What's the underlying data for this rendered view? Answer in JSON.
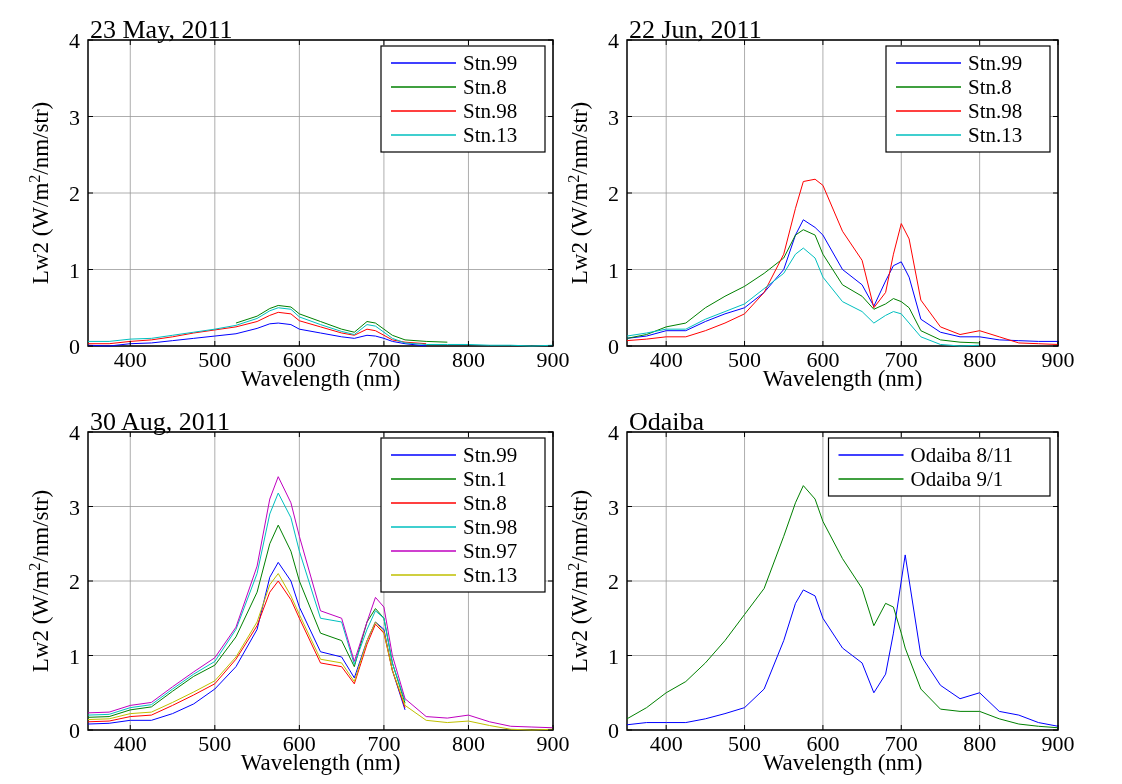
{
  "chart_data": [
    {
      "type": "line",
      "title": "23 May, 2011",
      "xlabel": "Wavelength (nm)",
      "ylabel": "Lw2 (W/m$^{2}$/nm/str)",
      "xlim": [
        350,
        900
      ],
      "xticks": [
        400,
        500,
        600,
        700,
        800,
        900
      ],
      "ylim": [
        0,
        4
      ],
      "yticks": [
        0,
        1,
        2,
        3,
        4
      ],
      "grid": true,
      "legend": "top right",
      "x": [
        350,
        375,
        400,
        425,
        450,
        475,
        500,
        525,
        550,
        565,
        575,
        590,
        600,
        625,
        650,
        665,
        680,
        690,
        700,
        710,
        725,
        750,
        775,
        800,
        825,
        850,
        875,
        900
      ],
      "series": [
        {
          "name": "Stn.99",
          "color": "#0000ff",
          "values": [
            0.01,
            0.0,
            0.03,
            0.04,
            0.07,
            0.1,
            0.13,
            0.16,
            0.23,
            0.29,
            0.3,
            0.28,
            0.22,
            0.17,
            0.12,
            0.1,
            0.14,
            0.13,
            0.1,
            0.06,
            0.03,
            0.0,
            null,
            null,
            null,
            null,
            null,
            null
          ]
        },
        {
          "name": "Stn.8",
          "color": "#008000",
          "values": [
            null,
            null,
            null,
            null,
            null,
            null,
            null,
            0.3,
            0.39,
            0.49,
            0.53,
            0.51,
            0.42,
            0.32,
            0.22,
            0.18,
            0.32,
            0.3,
            0.22,
            0.14,
            0.08,
            0.06,
            0.05,
            null,
            null,
            null,
            null,
            null
          ]
        },
        {
          "name": "Stn.98",
          "color": "#ff0000",
          "values": [
            0.03,
            0.03,
            0.06,
            0.08,
            0.12,
            0.17,
            0.21,
            0.25,
            0.32,
            0.4,
            0.44,
            0.42,
            0.33,
            0.25,
            0.17,
            0.14,
            0.22,
            0.2,
            0.14,
            0.08,
            0.05,
            0.03,
            null,
            null,
            null,
            null,
            null,
            null
          ]
        },
        {
          "name": "Stn.13",
          "color": "#00bfbf",
          "values": [
            0.06,
            0.06,
            0.09,
            0.1,
            0.14,
            0.18,
            0.22,
            0.27,
            0.36,
            0.46,
            0.5,
            0.48,
            0.38,
            0.28,
            0.19,
            0.15,
            0.28,
            0.26,
            0.18,
            0.1,
            0.04,
            0.02,
            0.02,
            0.02,
            0.01,
            0.01,
            0,
            0.01
          ]
        }
      ]
    },
    {
      "type": "line",
      "title": "22 Jun, 2011",
      "xlabel": "Wavelength (nm)",
      "ylabel": "Lw2 (W/m$^{2}$/nm/str)",
      "xlim": [
        350,
        900
      ],
      "xticks": [
        400,
        500,
        600,
        700,
        800,
        900
      ],
      "ylim": [
        0,
        4
      ],
      "yticks": [
        0,
        1,
        2,
        3,
        4
      ],
      "grid": true,
      "legend": "top right",
      "x": [
        350,
        375,
        400,
        425,
        450,
        475,
        500,
        525,
        550,
        565,
        575,
        590,
        600,
        625,
        650,
        665,
        680,
        690,
        700,
        710,
        725,
        750,
        775,
        800,
        825,
        850,
        875,
        900
      ],
      "series": [
        {
          "name": "Stn.99",
          "color": "#0000ff",
          "values": [
            0.1,
            0.13,
            0.2,
            0.2,
            0.32,
            0.42,
            0.5,
            0.7,
            1.0,
            1.45,
            1.65,
            1.55,
            1.45,
            1.0,
            0.8,
            0.52,
            0.85,
            1.05,
            1.1,
            0.9,
            0.35,
            0.18,
            0.12,
            0.12,
            0.08,
            0.07,
            0.06,
            0.06
          ]
        },
        {
          "name": "Stn.8",
          "color": "#008000",
          "values": [
            0.1,
            0.15,
            0.25,
            0.3,
            0.5,
            0.65,
            0.78,
            0.95,
            1.15,
            1.45,
            1.52,
            1.45,
            1.2,
            0.8,
            0.65,
            0.48,
            0.55,
            0.62,
            0.58,
            0.5,
            0.2,
            0.08,
            0.05,
            0.04,
            null,
            null,
            null,
            null
          ]
        },
        {
          "name": "Stn.98",
          "color": "#ff0000",
          "values": [
            0.07,
            0.09,
            0.12,
            0.12,
            0.2,
            0.3,
            0.42,
            0.7,
            1.2,
            1.8,
            2.15,
            2.18,
            2.1,
            1.5,
            1.12,
            0.5,
            0.7,
            1.2,
            1.6,
            1.4,
            0.6,
            0.25,
            0.15,
            0.2,
            0.12,
            0.04,
            0.03,
            0.02
          ]
        },
        {
          "name": "Stn.13",
          "color": "#00bfbf",
          "values": [
            0.13,
            0.17,
            0.22,
            0.22,
            0.35,
            0.45,
            0.55,
            0.75,
            0.95,
            1.2,
            1.28,
            1.15,
            0.9,
            0.58,
            0.45,
            0.3,
            0.4,
            0.45,
            0.42,
            0.3,
            0.12,
            0.02,
            0.0,
            0.01,
            null,
            null,
            null,
            null
          ]
        }
      ]
    },
    {
      "type": "line",
      "title": "30 Aug, 2011",
      "xlabel": "Wavelength (nm)",
      "ylabel": "Lw2 (W/m$^{2}$/nm/str)",
      "xlim": [
        350,
        900
      ],
      "xticks": [
        400,
        500,
        600,
        700,
        800,
        900
      ],
      "ylim": [
        0,
        4
      ],
      "yticks": [
        0,
        1,
        2,
        3,
        4
      ],
      "grid": true,
      "legend": "top right",
      "x": [
        350,
        375,
        400,
        425,
        450,
        475,
        500,
        525,
        550,
        565,
        575,
        590,
        600,
        625,
        650,
        665,
        680,
        690,
        700,
        710,
        725,
        750,
        775,
        800,
        825,
        850,
        875,
        900
      ],
      "series": [
        {
          "name": "Stn.99",
          "color": "#0000ff",
          "values": [
            0.08,
            0.09,
            0.13,
            0.13,
            0.22,
            0.35,
            0.55,
            0.85,
            1.35,
            2.05,
            2.25,
            2.0,
            1.65,
            1.05,
            0.98,
            0.7,
            1.2,
            1.45,
            1.35,
            0.8,
            0.27,
            null,
            null,
            null,
            null,
            null,
            null,
            null
          ]
        },
        {
          "name": "Stn.1",
          "color": "#008000",
          "values": [
            0.17,
            0.18,
            0.27,
            0.31,
            0.52,
            0.72,
            0.87,
            1.25,
            1.85,
            2.5,
            2.75,
            2.4,
            2.0,
            1.3,
            1.2,
            0.85,
            1.45,
            1.63,
            1.5,
            0.9,
            0.36,
            null,
            null,
            null,
            null,
            null,
            null,
            null
          ]
        },
        {
          "name": "Stn.8",
          "color": "#ff0000",
          "values": [
            0.11,
            0.12,
            0.18,
            0.2,
            0.33,
            0.47,
            0.62,
            0.95,
            1.4,
            1.85,
            2.0,
            1.75,
            1.5,
            0.9,
            0.85,
            0.62,
            1.15,
            1.42,
            1.3,
            0.8,
            0.3,
            null,
            null,
            null,
            null,
            null,
            null,
            null
          ]
        },
        {
          "name": "Stn.98",
          "color": "#00bfbf",
          "values": [
            0.2,
            0.21,
            0.3,
            0.34,
            0.55,
            0.75,
            0.92,
            1.35,
            2.1,
            2.9,
            3.18,
            2.85,
            2.4,
            1.5,
            1.45,
            0.88,
            1.35,
            1.6,
            1.5,
            0.9,
            0.39,
            null,
            null,
            null,
            null,
            null,
            null,
            null
          ]
        },
        {
          "name": "Stn.97",
          "color": "#bf00bf",
          "values": [
            0.23,
            0.24,
            0.33,
            0.37,
            0.58,
            0.78,
            0.97,
            1.38,
            2.2,
            3.1,
            3.4,
            3.05,
            2.6,
            1.6,
            1.5,
            0.92,
            1.45,
            1.78,
            1.65,
            1.0,
            0.42,
            0.18,
            0.16,
            0.2,
            0.11,
            0.05,
            0.04,
            0.03
          ]
        },
        {
          "name": "Stn.13",
          "color": "#bfbf00",
          "values": [
            0.14,
            0.15,
            0.22,
            0.24,
            0.37,
            0.51,
            0.66,
            0.98,
            1.45,
            1.95,
            2.1,
            1.8,
            1.55,
            0.95,
            0.9,
            0.65,
            1.2,
            1.45,
            1.32,
            0.8,
            0.33,
            0.13,
            0.1,
            0.12,
            0.06,
            0.01,
            0,
            0.01
          ]
        }
      ]
    },
    {
      "type": "line",
      "title": "Odaiba",
      "xlabel": "Wavelength (nm)",
      "ylabel": "Lw2 (W/m$^{2}$/nm/str)",
      "xlim": [
        350,
        900
      ],
      "xticks": [
        400,
        500,
        600,
        700,
        800,
        900
      ],
      "ylim": [
        0,
        4
      ],
      "yticks": [
        0,
        1,
        2,
        3,
        4
      ],
      "grid": true,
      "legend": "top right",
      "x": [
        350,
        375,
        400,
        425,
        450,
        475,
        500,
        525,
        550,
        565,
        575,
        590,
        600,
        625,
        650,
        665,
        680,
        690,
        700,
        705,
        725,
        750,
        775,
        800,
        825,
        850,
        875,
        900
      ],
      "series": [
        {
          "name": "Odaiba 8/11",
          "color": "#0000ff",
          "values": [
            0.07,
            0.1,
            0.1,
            0.1,
            0.15,
            0.22,
            0.3,
            0.55,
            1.2,
            1.7,
            1.88,
            1.8,
            1.5,
            1.1,
            0.9,
            0.5,
            0.75,
            1.3,
            2.0,
            2.35,
            1.0,
            0.6,
            0.42,
            0.5,
            0.25,
            0.2,
            0.1,
            0.05
          ]
        },
        {
          "name": "Odaiba 9/1",
          "color": "#008000",
          "values": [
            0.15,
            0.3,
            0.5,
            0.65,
            0.9,
            1.2,
            1.55,
            1.9,
            2.6,
            3.05,
            3.28,
            3.1,
            2.8,
            2.3,
            1.9,
            1.4,
            1.7,
            1.65,
            1.3,
            1.1,
            0.55,
            0.28,
            0.25,
            0.25,
            0.15,
            0.08,
            0.05,
            0.03
          ]
        }
      ]
    }
  ]
}
